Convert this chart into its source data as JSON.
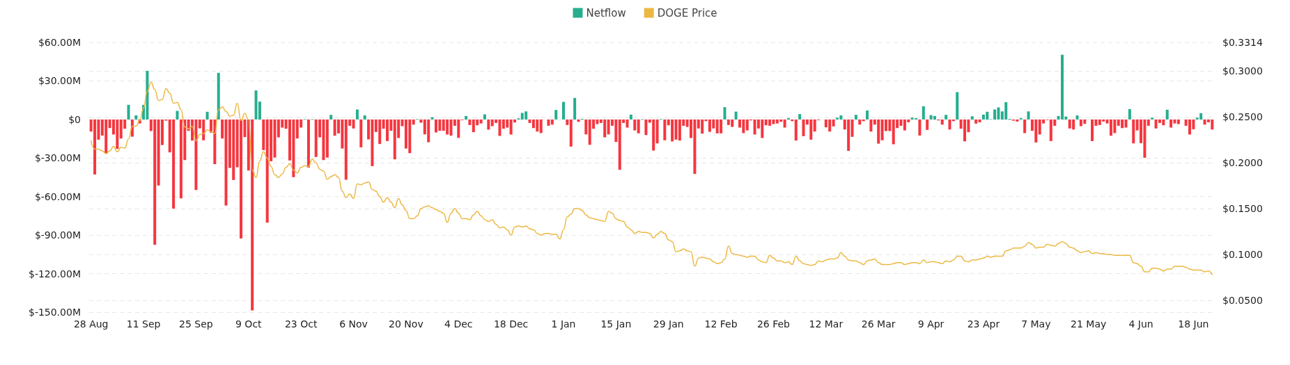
{
  "chart_data": {
    "type": "bar",
    "categories": [
      "28 Aug",
      null,
      null,
      null,
      null,
      null,
      null,
      null,
      null,
      null,
      null,
      null,
      null,
      null,
      "11 Sep",
      null,
      null,
      null,
      null,
      null,
      null,
      null,
      null,
      null,
      null,
      null,
      null,
      null,
      "25 Sep",
      null,
      null,
      null,
      null,
      null,
      null,
      null,
      null,
      null,
      null,
      null,
      null,
      null,
      "9 Oct",
      null,
      null,
      null,
      null,
      null,
      null,
      null,
      null,
      null,
      null,
      null,
      null,
      null,
      "23 Oct",
      null,
      null,
      null,
      null,
      null,
      null,
      null,
      null,
      null,
      null,
      null,
      null,
      null,
      "6 Nov",
      null,
      null,
      null,
      null,
      null,
      null,
      null,
      null,
      null,
      null,
      null,
      null,
      null,
      "20 Nov",
      null,
      null,
      null,
      null,
      null,
      null,
      null,
      null,
      null,
      null,
      null,
      null,
      null,
      "4 Dec",
      null,
      null,
      null,
      null,
      null,
      null,
      null,
      null,
      null,
      null,
      null,
      null,
      null,
      "18 Dec",
      null,
      null,
      null,
      null,
      null,
      null,
      null,
      null,
      null,
      null,
      null,
      null,
      null,
      "1 Jan",
      null,
      null,
      null,
      null,
      null,
      null,
      null,
      null,
      null,
      null,
      null,
      null,
      null,
      "15 Jan",
      null,
      null,
      null,
      null,
      null,
      null,
      null,
      null,
      null,
      null,
      null,
      null,
      null,
      "29 Jan",
      null,
      null,
      null,
      null,
      null,
      null,
      null,
      null,
      null,
      null,
      null,
      null,
      null,
      "12 Feb",
      null,
      null,
      null,
      null,
      null,
      null,
      null,
      null,
      null,
      null,
      null,
      null,
      null,
      "26 Feb",
      null,
      null,
      null,
      null,
      null,
      null,
      null,
      null,
      null,
      null,
      null,
      null,
      null,
      "12 Mar",
      null,
      null,
      null,
      null,
      null,
      null,
      null,
      null,
      null,
      null,
      null,
      null,
      null,
      "26 Mar",
      null,
      null,
      null,
      null,
      null,
      null,
      null,
      null,
      null,
      null,
      null,
      null,
      null,
      "9 Apr",
      null,
      null,
      null,
      null,
      null,
      null,
      null,
      null,
      null,
      null,
      null,
      null,
      null,
      "23 Apr",
      null,
      null,
      null,
      null,
      null,
      null,
      null,
      null,
      null,
      null,
      null,
      null,
      null,
      "7 May",
      null,
      null,
      null,
      null,
      null,
      null,
      null,
      null,
      null,
      null,
      null,
      null,
      null,
      "21 May",
      null,
      null,
      null,
      null,
      null,
      null,
      null,
      null,
      null,
      null,
      null,
      null,
      null,
      "4 Jun",
      null,
      null,
      null,
      null,
      null,
      null,
      null,
      null,
      null,
      null,
      null,
      null,
      null,
      "18 Jun",
      null,
      null,
      null,
      null,
      null
    ],
    "series": [
      {
        "name": "Netflow",
        "color": "#26ae8f",
        "values": [
          -9.4,
          -42.8,
          -15.7,
          -12.5,
          -26.5,
          -6.7,
          -11.7,
          -22.9,
          -14.8,
          -7.2,
          11.4,
          -13.4,
          3.2,
          -3.1,
          11.4,
          37.9,
          -9.0,
          -97.5,
          -51.4,
          -19.9,
          -0.9,
          -25.6,
          -69.3,
          6.7,
          -61.4,
          -31.6,
          -8.8,
          -16.4,
          -54.9,
          -6.9,
          -16.2,
          6.0,
          -10.3,
          -34.8,
          36.3,
          -14.8,
          -67.0,
          -37.7,
          -47.1,
          -37.2,
          -92.6,
          -13.7,
          -39.7,
          -148.6,
          22.6,
          13.9,
          -23.8,
          -80.3,
          -32.5,
          -29.6,
          -13.9,
          -6.3,
          -7.2,
          -31.9,
          -44.9,
          -14.8,
          -6.3,
          0.3,
          -37.4,
          0.3,
          -29.2,
          -13.9,
          -31.6,
          -29.6,
          3.6,
          -12.6,
          -10.8,
          -22.6,
          -46.9,
          -4.9,
          -7.0,
          7.8,
          -21.7,
          3.2,
          -15.5,
          -36.3,
          -9.7,
          -19.1,
          -7.2,
          -16.8,
          -8.8,
          -31.0,
          -14.4,
          -5.2,
          -22.6,
          -26.2,
          -4.0,
          0.4,
          -2.5,
          -11.6,
          -17.7,
          1.8,
          -10.1,
          -8.8,
          -8.8,
          -11.7,
          -12.6,
          -4.9,
          -14.3,
          -0.5,
          2.7,
          -4.3,
          -9.9,
          -4.5,
          -3.1,
          4.0,
          -7.9,
          -5.2,
          -2.7,
          -12.8,
          -7.2,
          -6.3,
          -11.7,
          -2.3,
          0.9,
          5.1,
          6.3,
          -2.7,
          -6.7,
          -9.4,
          -10.6,
          0,
          -4.9,
          -4.0,
          7.4,
          0,
          13.7,
          -4.3,
          -21.1,
          16.8,
          -1.8,
          0.5,
          -11.6,
          -19.7,
          -7.2,
          -3.6,
          -2.7,
          -13.9,
          -11.6,
          -4.9,
          -17.5,
          -39.2,
          -2.7,
          -6.3,
          3.8,
          -8.5,
          -10.8,
          0.3,
          -12.1,
          -2.5,
          -24.2,
          -18.6,
          0.4,
          -16.2,
          -4.5,
          -17.1,
          -15.7,
          -16.4,
          -4.9,
          -5.8,
          -14.4,
          -42.4,
          -7.0,
          -11.0,
          -1.3,
          -9.6,
          -7.0,
          -10.8,
          -10.8,
          9.6,
          -4.3,
          -5.8,
          6.1,
          -6.3,
          -10.6,
          -8.5,
          -0.7,
          -11.7,
          -7.0,
          -14.4,
          -4.5,
          -4.9,
          -3.6,
          -3.1,
          -1.8,
          -6.3,
          1.1,
          -1.3,
          -16.4,
          4.2,
          -13.0,
          -4.0,
          -15.7,
          -9.4,
          -0.5,
          0,
          -6.1,
          -9.4,
          -5.4,
          1.4,
          3.2,
          -7.8,
          -24.4,
          -13.5,
          3.6,
          -4.0,
          -1.3,
          7.0,
          -9.4,
          -4.0,
          -18.8,
          -16.2,
          -9.0,
          -9.0,
          -19.3,
          -6.7,
          -4.9,
          -8.5,
          -2.2,
          1.4,
          1.1,
          -12.5,
          10.3,
          -8.1,
          3.4,
          2.7,
          -0.7,
          -4.0,
          3.6,
          -7.8,
          -1.3,
          21.3,
          -7.2,
          -17.0,
          -9.9,
          2.5,
          -3.2,
          -2.2,
          3.8,
          6.0,
          0.3,
          7.8,
          9.4,
          6.3,
          13.5,
          0.5,
          -0.9,
          -1.6,
          1.1,
          -10.6,
          6.3,
          -8.8,
          -17.9,
          -11.7,
          -3.1,
          -0.4,
          -16.8,
          -4.9,
          2.7,
          50.4,
          2.3,
          -7.0,
          -7.8,
          3.2,
          -5.2,
          -3.4,
          null,
          -16.8,
          -4.9,
          -4.3,
          -1.6,
          -3.1,
          -12.6,
          -10.6,
          -4.9,
          -6.7,
          -6.3,
          8.1,
          -18.6,
          -8.5,
          -18.4,
          -29.8,
          -4.9,
          1.4,
          -7.0,
          -2.7,
          -4.5,
          7.6,
          -6.3,
          -3.1,
          -3.6,
          null,
          -4.9,
          -11.7,
          -7.6,
          1.4,
          4.9,
          -4.0,
          -2.2,
          -7.8
        ],
        "colors": [
          "#f5363f",
          "#f5363f",
          "#f5363f",
          "#f5363f",
          "#f5363f",
          "#f5363f",
          "#f5363f",
          "#f5363f",
          "#f5363f",
          "#f5363f",
          "#26ae8f",
          "#f5363f",
          "#26ae8f",
          "#f5363f",
          "#26ae8f",
          "#26ae8f",
          "#f5363f",
          "#f5363f",
          "#f5363f",
          "#f5363f",
          "#f5363f",
          "#f5363f",
          "#f5363f",
          "#26ae8f",
          "#f5363f",
          "#f5363f",
          "#f5363f",
          "#f5363f",
          "#f5363f",
          "#f5363f",
          "#f5363f",
          "#26ae8f",
          "#f5363f",
          "#f5363f",
          "#26ae8f",
          "#f5363f",
          "#f5363f",
          "#f5363f",
          "#f5363f",
          "#f5363f",
          "#f5363f",
          "#f5363f",
          "#f5363f",
          "#f5363f",
          "#26ae8f",
          "#26ae8f",
          "#f5363f",
          "#f5363f",
          "#f5363f",
          "#f5363f",
          "#f5363f",
          "#f5363f",
          "#f5363f",
          "#f5363f",
          "#f5363f",
          "#f5363f",
          "#f5363f",
          "#26ae8f",
          "#f5363f",
          "#26ae8f",
          "#f5363f",
          "#f5363f",
          "#f5363f",
          "#f5363f",
          "#26ae8f",
          "#f5363f",
          "#f5363f",
          "#f5363f",
          "#f5363f",
          "#f5363f",
          "#f5363f",
          "#26ae8f",
          "#f5363f",
          "#26ae8f",
          "#f5363f",
          "#f5363f",
          "#f5363f",
          "#f5363f",
          "#f5363f",
          "#f5363f",
          "#f5363f",
          "#f5363f",
          "#f5363f",
          "#f5363f",
          "#f5363f",
          "#f5363f",
          "#f5363f",
          "#26ae8f",
          "#f5363f",
          "#f5363f",
          "#f5363f",
          "#26ae8f",
          "#f5363f",
          "#f5363f",
          "#f5363f",
          "#f5363f",
          "#f5363f",
          "#f5363f",
          "#f5363f",
          "#f5363f",
          "#26ae8f",
          "#f5363f",
          "#f5363f",
          "#f5363f",
          "#f5363f",
          "#26ae8f",
          "#f5363f",
          "#f5363f",
          "#f5363f",
          "#f5363f",
          "#f5363f",
          "#f5363f",
          "#f5363f",
          "#f5363f",
          "#26ae8f",
          "#26ae8f",
          "#26ae8f",
          "#f5363f",
          "#f5363f",
          "#f5363f",
          "#f5363f",
          "#f5363f",
          "#f5363f",
          "#f5363f",
          "#26ae8f",
          "#f5363f",
          "#26ae8f",
          "#f5363f",
          "#f5363f",
          "#26ae8f",
          "#f5363f",
          "#26ae8f",
          "#f5363f",
          "#f5363f",
          "#f5363f",
          "#f5363f",
          "#f5363f",
          "#f5363f",
          "#f5363f",
          "#f5363f",
          "#f5363f",
          "#f5363f",
          "#f5363f",
          "#f5363f",
          "#26ae8f",
          "#f5363f",
          "#f5363f",
          "#26ae8f",
          "#f5363f",
          "#f5363f",
          "#f5363f",
          "#f5363f",
          "#26ae8f",
          "#f5363f",
          "#f5363f",
          "#f5363f",
          "#f5363f",
          "#f5363f",
          "#f5363f",
          "#f5363f",
          "#f5363f",
          "#f5363f",
          "#f5363f",
          "#f5363f",
          "#f5363f",
          "#f5363f",
          "#f5363f",
          "#f5363f",
          "#f5363f",
          "#26ae8f",
          "#f5363f",
          "#f5363f",
          "#26ae8f",
          "#f5363f",
          "#f5363f",
          "#f5363f",
          "#f5363f",
          "#f5363f",
          "#f5363f",
          "#f5363f",
          "#f5363f",
          "#f5363f",
          "#f5363f",
          "#f5363f",
          "#f5363f",
          "#f5363f",
          "#26ae8f",
          "#f5363f",
          "#f5363f",
          "#26ae8f",
          "#f5363f",
          "#f5363f",
          "#f5363f",
          "#f5363f",
          "#f5363f",
          "#f5363f",
          "#f5363f",
          "#f5363f",
          "#f5363f",
          "#26ae8f",
          "#26ae8f",
          "#f5363f",
          "#f5363f",
          "#f5363f",
          "#26ae8f",
          "#f5363f",
          "#f5363f",
          "#26ae8f",
          "#f5363f",
          "#f5363f",
          "#f5363f",
          "#f5363f",
          "#f5363f",
          "#f5363f",
          "#f5363f",
          "#f5363f",
          "#f5363f",
          "#f5363f",
          "#f5363f",
          "#26ae8f",
          "#26ae8f",
          "#f5363f",
          "#26ae8f",
          "#f5363f",
          "#26ae8f",
          "#26ae8f",
          "#f5363f",
          "#f5363f",
          "#26ae8f",
          "#f5363f",
          "#f5363f",
          "#26ae8f",
          "#f5363f",
          "#f5363f",
          "#f5363f",
          "#26ae8f",
          "#f5363f",
          "#f5363f",
          "#26ae8f",
          "#26ae8f",
          "#26ae8f",
          "#26ae8f",
          "#26ae8f",
          "#26ae8f",
          "#26ae8f",
          "#26ae8f",
          "#f5363f",
          "#f5363f",
          "#26ae8f",
          "#f5363f",
          "#26ae8f",
          "#f5363f",
          "#f5363f",
          "#f5363f",
          "#f5363f",
          "#f5363f",
          "#f5363f",
          "#f5363f",
          "#26ae8f",
          "#26ae8f",
          "#26ae8f",
          "#f5363f",
          "#f5363f",
          "#26ae8f",
          "#f5363f",
          "#f5363f",
          "#f5363f",
          "#f5363f",
          "#f5363f",
          "#f5363f",
          "#f5363f",
          "#f5363f",
          "#f5363f",
          "#f5363f",
          "#f5363f",
          "#f5363f",
          "#f5363f",
          "#26ae8f",
          "#f5363f",
          "#f5363f",
          "#f5363f",
          "#f5363f",
          "#f5363f",
          "#26ae8f",
          "#f5363f",
          "#f5363f",
          "#f5363f",
          "#26ae8f",
          "#f5363f",
          "#f5363f",
          "#f5363f",
          "#f5363f",
          "#f5363f",
          "#f5363f",
          "#f5363f",
          "#26ae8f",
          "#26ae8f",
          "#f5363f",
          "#f5363f",
          "#f5363f"
        ]
      },
      {
        "name": "DOGE Price",
        "type": "line",
        "axis": "y2",
        "color": "#ecb843",
        "values": [
          0.224,
          0.215,
          0.215,
          0.213,
          0.21,
          0.213,
          0.218,
          0.212,
          0.217,
          0.216,
          0.226,
          0.24,
          0.24,
          0.246,
          0.26,
          0.278,
          0.288,
          0.28,
          0.268,
          0.269,
          0.281,
          0.276,
          0.265,
          0.266,
          0.258,
          0.239,
          0.237,
          0.24,
          0.224,
          0.231,
          0.232,
          0.236,
          0.234,
          0.232,
          0.258,
          0.261,
          0.256,
          0.251,
          0.252,
          0.265,
          0.246,
          0.254,
          0.247,
          0.192,
          0.184,
          0.202,
          0.212,
          0.205,
          0.196,
          0.187,
          0.184,
          0.188,
          0.195,
          0.199,
          0.192,
          0.189,
          0.195,
          0.197,
          0.196,
          0.204,
          0.2,
          0.193,
          0.191,
          0.182,
          0.185,
          0.187,
          0.184,
          0.169,
          0.162,
          0.166,
          0.161,
          0.177,
          0.176,
          0.178,
          0.179,
          0.171,
          0.169,
          0.163,
          0.157,
          0.162,
          0.157,
          0.151,
          0.161,
          0.154,
          0.148,
          0.139,
          0.139,
          0.142,
          0.15,
          0.152,
          0.153,
          0.151,
          0.149,
          0.147,
          0.145,
          0.135,
          0.145,
          0.15,
          0.145,
          0.139,
          0.139,
          0.138,
          0.143,
          0.147,
          0.142,
          0.138,
          0.136,
          0.138,
          0.133,
          0.129,
          0.13,
          0.127,
          0.121,
          0.13,
          0.131,
          0.13,
          0.131,
          0.128,
          0.127,
          0.123,
          0.121,
          0.123,
          0.123,
          0.122,
          0.122,
          0.117,
          0.127,
          0.141,
          0.144,
          0.15,
          0.15,
          0.148,
          0.143,
          0.14,
          0.139,
          0.138,
          0.137,
          0.136,
          0.147,
          0.145,
          0.139,
          0.137,
          0.136,
          0.13,
          0.127,
          0.123,
          0.125,
          0.124,
          0.124,
          0.123,
          0.118,
          0.122,
          0.125,
          0.123,
          0.116,
          0.114,
          0.103,
          0.104,
          0.106,
          0.104,
          0.103,
          0.087,
          0.096,
          0.097,
          0.096,
          0.095,
          0.092,
          0.09,
          0.091,
          0.095,
          0.109,
          0.101,
          0.1,
          0.099,
          0.098,
          0.097,
          0.098,
          0.098,
          0.094,
          0.092,
          0.091,
          0.099,
          0.096,
          0.093,
          0.093,
          0.091,
          0.092,
          0.089,
          0.098,
          0.093,
          0.09,
          0.089,
          0.088,
          0.089,
          0.093,
          0.092,
          0.094,
          0.095,
          0.095,
          0.096,
          0.102,
          0.098,
          0.094,
          0.093,
          0.093,
          0.091,
          0.089,
          0.093,
          0.094,
          0.095,
          0.091,
          0.089,
          0.089,
          0.089,
          0.09,
          0.091,
          0.091,
          0.089,
          0.09,
          0.091,
          0.091,
          0.09,
          0.094,
          0.091,
          0.092,
          0.092,
          0.091,
          0.09,
          0.093,
          0.092,
          0.094,
          0.098,
          0.098,
          0.093,
          0.092,
          0.094,
          0.094,
          0.095,
          0.096,
          0.098,
          0.097,
          0.098,
          0.098,
          0.098,
          0.104,
          0.105,
          0.107,
          0.107,
          0.107,
          0.109,
          0.113,
          0.111,
          0.107,
          0.108,
          0.108,
          0.111,
          0.11,
          0.109,
          0.112,
          0.114,
          0.112,
          0.108,
          0.107,
          0.104,
          0.102,
          0.103,
          0.104,
          0.101,
          0.102,
          0.101,
          0.101,
          0.1,
          0.1,
          0.099,
          0.099,
          0.099,
          0.099,
          0.099,
          0.091,
          0.09,
          0.087,
          0.081,
          0.081,
          0.085,
          0.085,
          0.084,
          0.082,
          0.084,
          0.084,
          0.087,
          0.087,
          0.087,
          0.086,
          0.084,
          0.083,
          0.083,
          0.083,
          0.081,
          0.082,
          0.078
        ]
      }
    ],
    "ylim": [
      -150,
      60
    ],
    "yticks": [
      {
        "value": -150,
        "label": "$-150.00M"
      },
      {
        "value": -120,
        "label": "$-120.00M"
      },
      {
        "value": -90,
        "label": "$-90.00M"
      },
      {
        "value": -60,
        "label": "$-60.00M"
      },
      {
        "value": -30,
        "label": "$-30.00M"
      },
      {
        "value": 0,
        "label": "$0"
      },
      {
        "value": 30,
        "label": "$30.00M"
      },
      {
        "value": 60,
        "label": "$60.00M"
      }
    ],
    "y2lim": [
      0.037,
      0.3314
    ],
    "y2ticks": [
      {
        "value": 0.05,
        "label": "$0.0500"
      },
      {
        "value": 0.1,
        "label": "$0.1000"
      },
      {
        "value": 0.15,
        "label": "$0.1500"
      },
      {
        "value": 0.2,
        "label": "$0.2000"
      },
      {
        "value": 0.25,
        "label": "$0.2500"
      },
      {
        "value": 0.3,
        "label": "$0.3000"
      },
      {
        "value": 0.3314,
        "label": "$0.3314"
      }
    ],
    "grid": true,
    "legend": "top",
    "marker": "none",
    "line_style": "solid"
  }
}
